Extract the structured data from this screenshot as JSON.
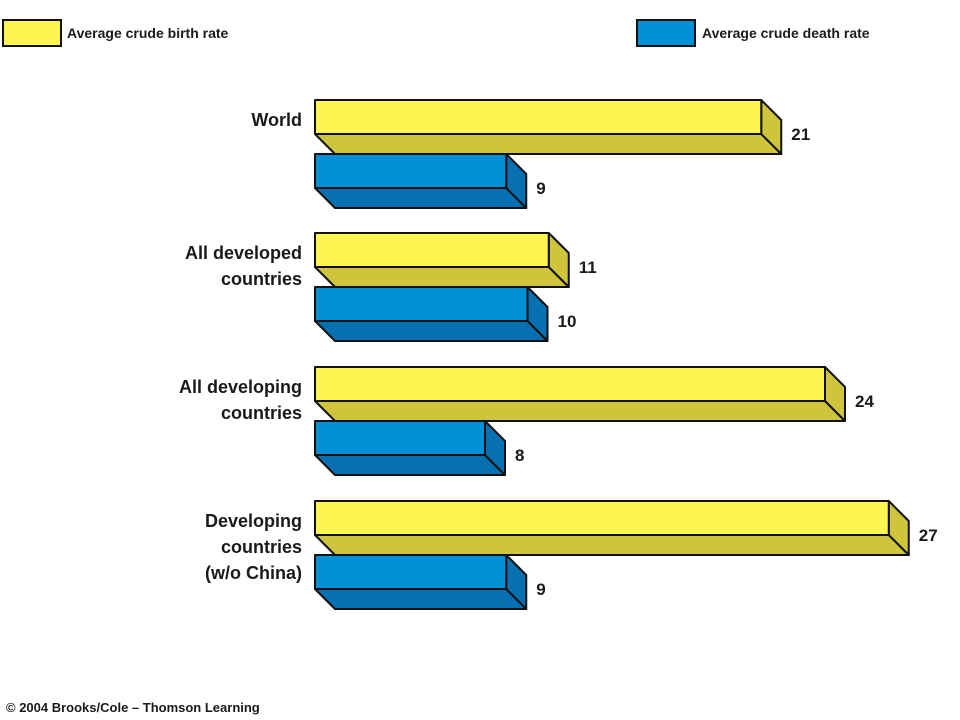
{
  "chart_data": {
    "type": "bar",
    "orientation": "horizontal",
    "style": "3d",
    "categories": [
      [
        "World"
      ],
      [
        "All developed",
        "countries"
      ],
      [
        "All developing",
        "countries"
      ],
      [
        "Developing",
        "countries",
        "(w/o China)"
      ]
    ],
    "series": [
      {
        "name": "Average crude birth rate",
        "color": "#fef552",
        "values": [
          21,
          11,
          24,
          27
        ]
      },
      {
        "name": "Average crude death rate",
        "color": "#0090d6",
        "values": [
          9,
          10,
          8,
          9
        ]
      }
    ],
    "grid": false,
    "legend_position": "top"
  },
  "copyright": "© 2004 Brooks/Cole – Thomson Learning",
  "colors": {
    "birth_top": "#fef552",
    "birth_side": "#cfc53c",
    "death_top": "#0090d6",
    "death_side": "#0770b0",
    "outline": "#111111"
  }
}
